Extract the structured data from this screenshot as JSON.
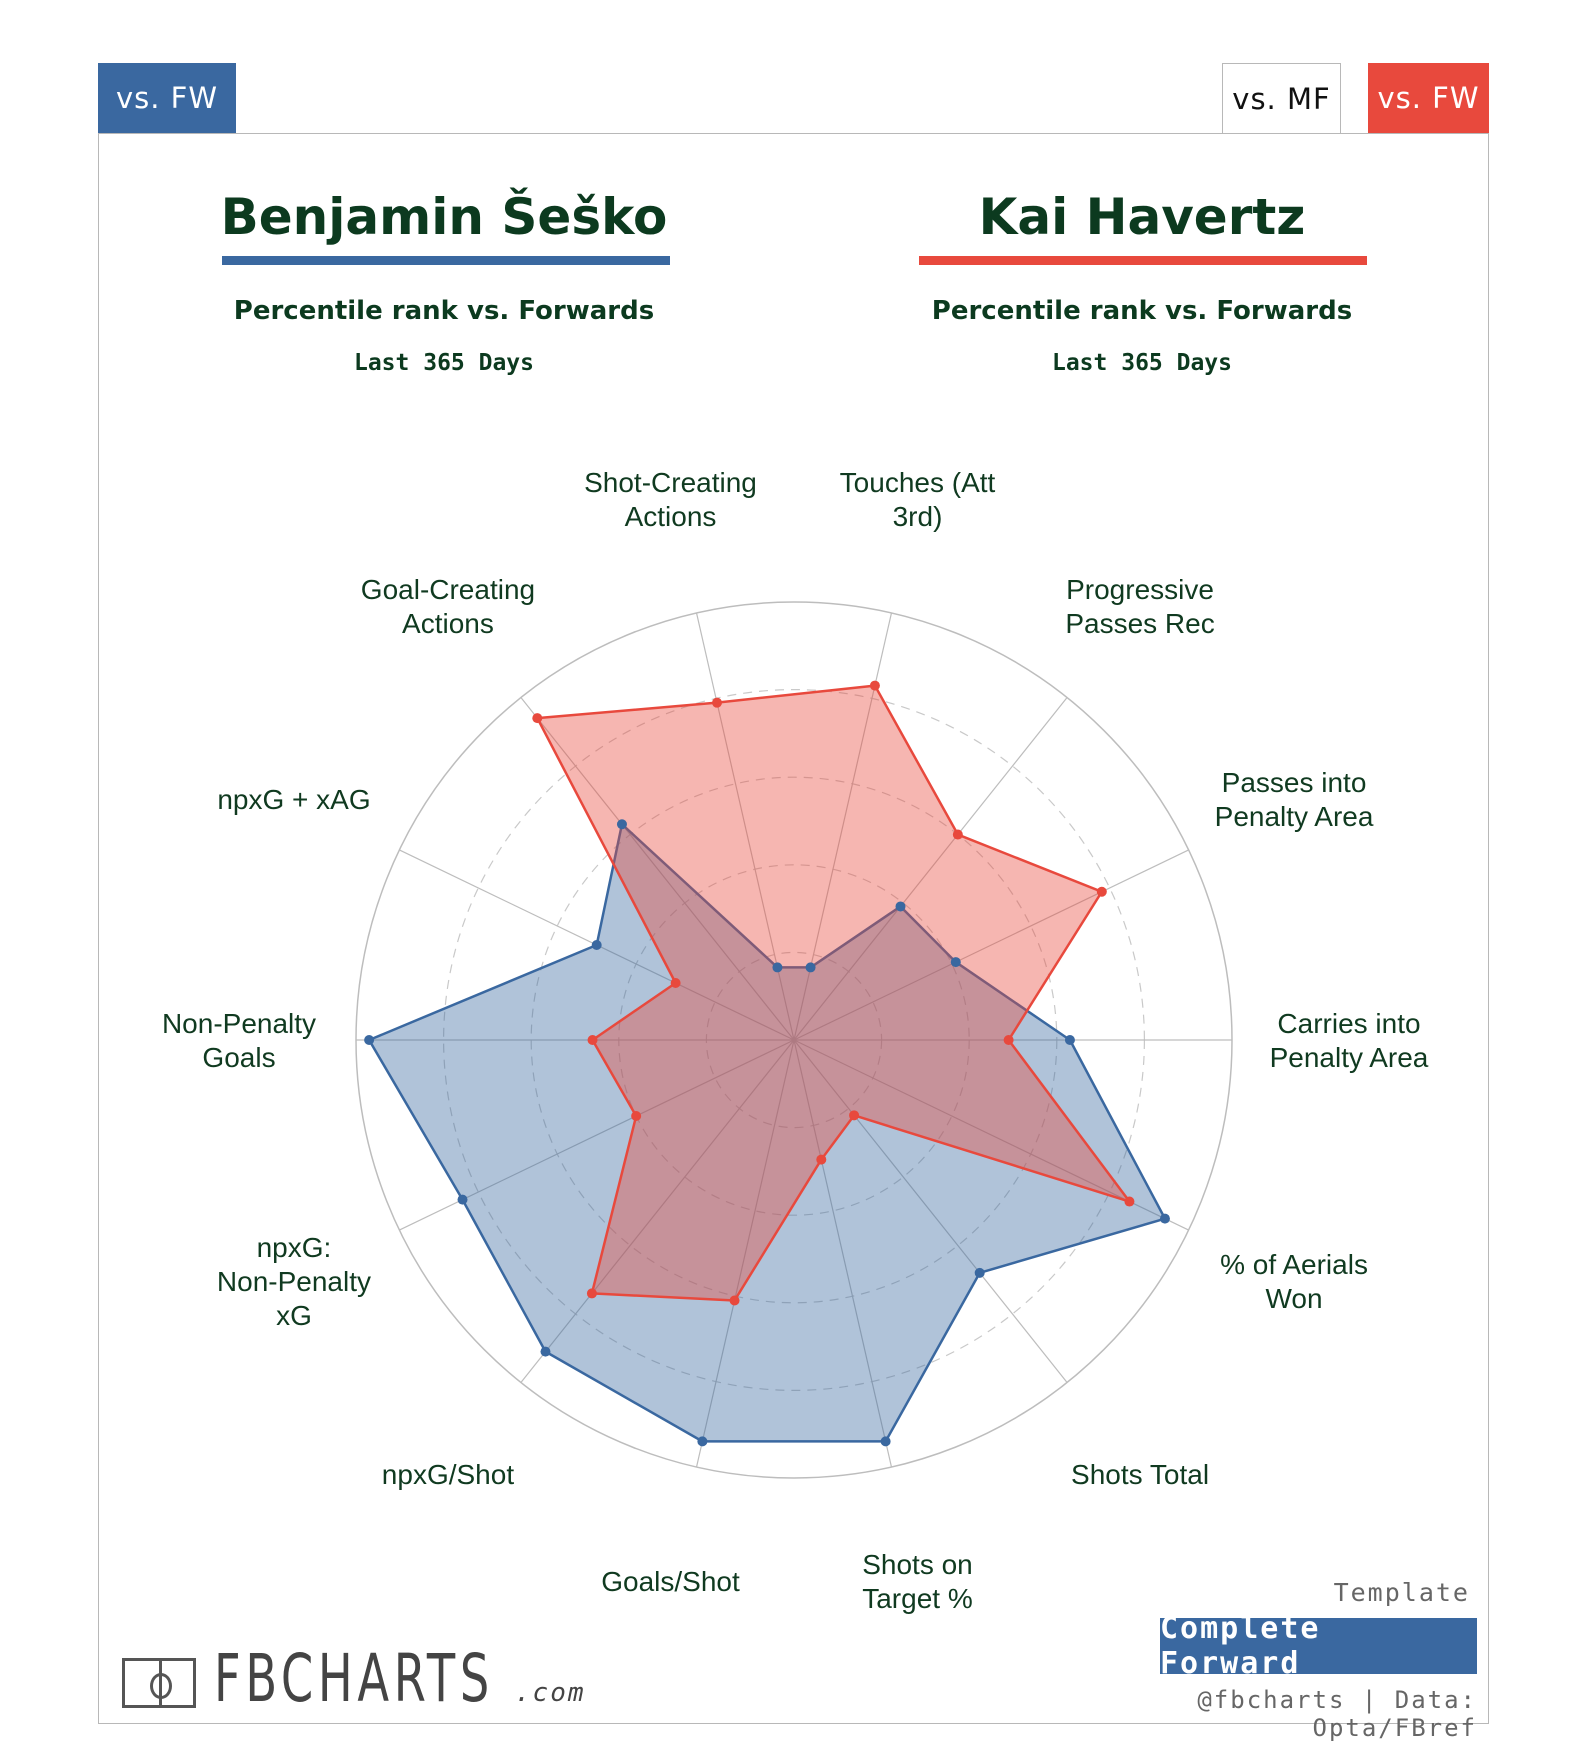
{
  "tabs": {
    "left_label": "vs. FW",
    "mf_label": "vs. MF",
    "fw_label": "vs. FW"
  },
  "players": [
    {
      "name": "Benjamin Šeško",
      "subtitle": "Percentile rank vs. Forwards",
      "period": "Last 365 Days",
      "color": "#3a68a0"
    },
    {
      "name": "Kai Havertz",
      "subtitle": "Percentile rank vs. Forwards",
      "period": "Last 365 Days",
      "color": "#e8493d"
    }
  ],
  "chart_data": {
    "type": "radar",
    "categories": [
      "Carries into Penalty Area",
      "Passes into Penalty Area",
      "Progressive Passes Rec",
      "Touches (Att 3rd)",
      "Shot-Creating Actions",
      "Goal-Creating Actions",
      "npxG + xAG",
      "Non-Penalty Goals",
      "npxG: Non-Penalty xG",
      "npxG/Shot",
      "Goals/Shot",
      "Shots on Target %",
      "Shots Total",
      "% of Aerials Won"
    ],
    "series": [
      {
        "name": "Benjamin Šeško",
        "values": [
          63,
          41,
          39,
          17,
          17,
          63,
          50,
          97,
          84,
          91,
          94,
          94,
          68,
          94
        ]
      },
      {
        "name": "Kai Havertz",
        "values": [
          49,
          78,
          60,
          83,
          79,
          94,
          30,
          46,
          40,
          74,
          61,
          28,
          22,
          85
        ]
      }
    ],
    "rlim": [
      0,
      100
    ],
    "gridlines": [
      20,
      40,
      60,
      80
    ],
    "grid": true
  },
  "template": {
    "label": "Template",
    "name": "Complete Forward"
  },
  "credit": "@fbcharts | Data: Opta/FBref",
  "logo": {
    "text": "FBCHARTS",
    "suffix": ".com"
  }
}
